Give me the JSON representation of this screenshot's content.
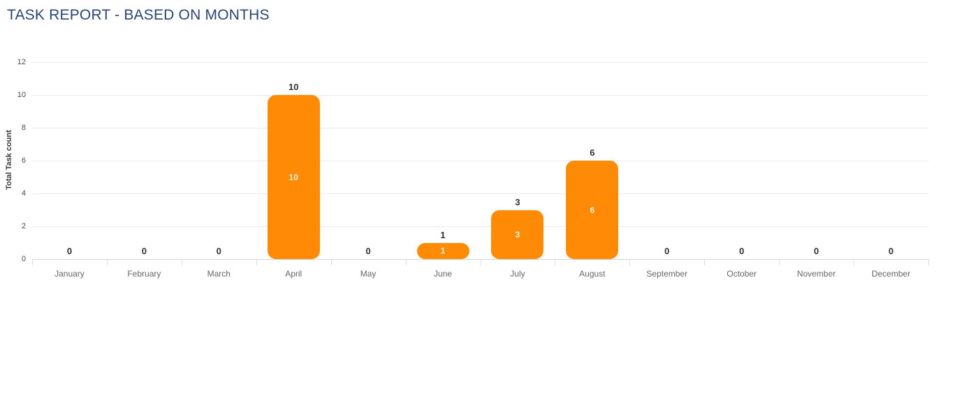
{
  "title": "TASK REPORT - BASED ON MONTHS",
  "colors": {
    "title": "#2a4572",
    "bar": "#ff8a05",
    "value_label": "#333333",
    "inner_label": "#fff3db",
    "month_label": "#666666",
    "gridline": "#e9e9e9",
    "axis_line": "#d4d4d4"
  },
  "chart_data": {
    "type": "bar",
    "title": "TASK REPORT - BASED ON MONTHS",
    "categories": [
      "January",
      "February",
      "March",
      "April",
      "May",
      "June",
      "July",
      "August",
      "September",
      "October",
      "November",
      "December"
    ],
    "values": [
      0,
      0,
      0,
      10,
      0,
      1,
      3,
      6,
      0,
      0,
      0,
      0
    ],
    "value_labels_above": [
      "0",
      "0",
      "0",
      "10",
      "0",
      "1",
      "3",
      "6",
      "0",
      "0",
      "0",
      "0"
    ],
    "value_labels_inside": [
      "",
      "",
      "",
      "10",
      "",
      "1",
      "3",
      "6",
      "",
      "",
      "",
      ""
    ],
    "xlabel": "",
    "ylabel": "Total Task count",
    "ylim": [
      0,
      12
    ],
    "yticks": [
      0,
      2,
      4,
      6,
      8,
      10,
      12
    ],
    "grid": "horizontal",
    "legend": "none",
    "bar_color": "#ff8a05"
  }
}
